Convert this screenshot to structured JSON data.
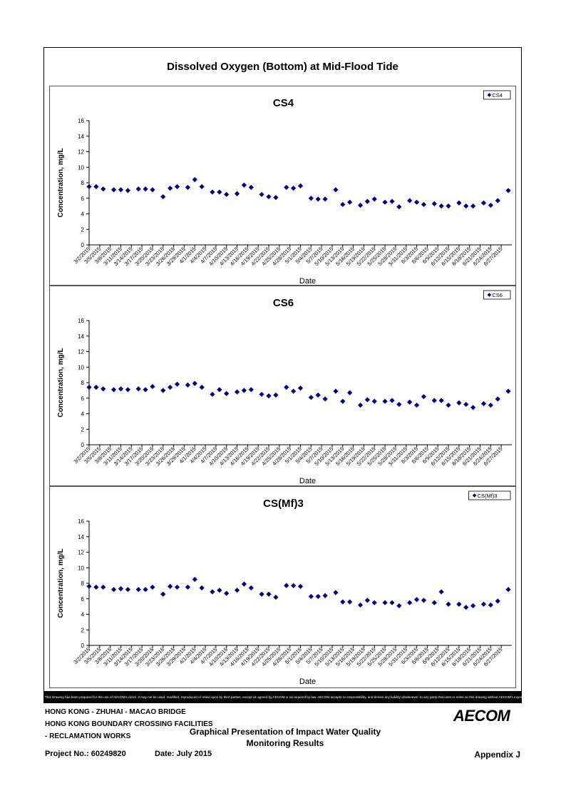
{
  "page": {
    "title": "Dissolved Oxygen (Bottom) at Mid-Flood Tide",
    "disclaimer": "This Drawing has been prepared for the use of AECOM's client. It may not be used, modified, reproduced or relied upon by third parties, except as agreed by AECOM or as required by law. AECOM accepts no responsibility, and denies any liability whatsoever, to any party that uses or relies on this drawing without AECOM's express written consent.",
    "footer": {
      "line1": "HONG KONG - ZHUHAI - MACAO BRIDGE",
      "line2": "HONG KONG BOUNDARY CROSSING FACILITIES",
      "line3": "- RECLAMATION WORKS",
      "center_line1": "Graphical Presentation of Impact Water Quality",
      "center_line2": "Monitoring Results",
      "logo": "AECOM",
      "project": "Project No.: 60249820",
      "date": "Date: July 2015",
      "appendix": "Appendix J"
    }
  },
  "colors": {
    "marker": "#000080",
    "axis": "#000000",
    "frame": "#000000"
  },
  "chart_data": [
    {
      "type": "scatter",
      "title": "CS4",
      "xlabel": "Date",
      "ylabel": "Concentration, mg/L",
      "ylim": [
        0,
        16
      ],
      "yticks": [
        0,
        2,
        4,
        6,
        8,
        10,
        12,
        14,
        16
      ],
      "xlim": [
        "3/2/2015",
        "6/30/2015"
      ],
      "xticks": [
        "3/2/2015",
        "3/5/2015",
        "3/8/2015",
        "3/11/2015",
        "3/14/2015",
        "3/17/2015",
        "3/20/2015",
        "3/23/2015",
        "3/26/2015",
        "3/29/2015",
        "4/1/2015",
        "4/4/2015",
        "4/7/2015",
        "4/10/2015",
        "4/13/2015",
        "4/16/2015",
        "4/19/2015",
        "4/22/2015",
        "4/25/2015",
        "4/28/2015",
        "5/1/2015",
        "5/4/2015",
        "5/7/2015",
        "5/10/2015",
        "5/13/2015",
        "5/16/2015",
        "5/19/2015",
        "5/22/2015",
        "5/25/2015",
        "5/28/2015",
        "5/31/2015",
        "6/3/2015",
        "6/6/2015",
        "6/9/2015",
        "6/12/2015",
        "6/15/2015",
        "6/18/2015",
        "6/21/2015",
        "6/24/2015",
        "6/27/2015"
      ],
      "legend": {
        "label": "CS4",
        "position": "top-right"
      },
      "grid": false,
      "series": [
        {
          "name": "CS4",
          "x": [
            "3/2/2015",
            "3/4/2015",
            "3/6/2015",
            "3/9/2015",
            "3/11/2015",
            "3/13/2015",
            "3/16/2015",
            "3/18/2015",
            "3/20/2015",
            "3/23/2015",
            "3/25/2015",
            "3/27/2015",
            "3/30/2015",
            "4/1/2015",
            "4/3/2015",
            "4/6/2015",
            "4/8/2015",
            "4/10/2015",
            "4/13/2015",
            "4/15/2015",
            "4/17/2015",
            "4/20/2015",
            "4/22/2015",
            "4/24/2015",
            "4/27/2015",
            "4/29/2015",
            "5/1/2015",
            "5/4/2015",
            "5/6/2015",
            "5/8/2015",
            "5/11/2015",
            "5/13/2015",
            "5/15/2015",
            "5/18/2015",
            "5/20/2015",
            "5/22/2015",
            "5/25/2015",
            "5/27/2015",
            "5/29/2015",
            "6/1/2015",
            "6/3/2015",
            "6/5/2015",
            "6/8/2015",
            "6/10/2015",
            "6/12/2015",
            "6/15/2015",
            "6/17/2015",
            "6/19/2015",
            "6/22/2015",
            "6/24/2015",
            "6/26/2015",
            "6/29/2015"
          ],
          "y": [
            7.5,
            7.5,
            7.2,
            7.1,
            7.1,
            7.0,
            7.2,
            7.2,
            7.1,
            6.2,
            7.3,
            7.5,
            7.4,
            8.4,
            7.5,
            6.8,
            6.8,
            6.5,
            6.6,
            7.7,
            7.4,
            6.5,
            6.2,
            6.1,
            7.4,
            7.3,
            7.6,
            6.0,
            5.9,
            5.9,
            7.1,
            5.2,
            5.5,
            5.1,
            5.6,
            5.9,
            5.5,
            5.6,
            4.9,
            5.7,
            5.5,
            5.2,
            5.3,
            5.0,
            5.0,
            5.4,
            5.0,
            5.0,
            5.4,
            5.1,
            5.7,
            7.0
          ]
        }
      ]
    },
    {
      "type": "scatter",
      "title": "CS6",
      "xlabel": "Date",
      "ylabel": "Concentration, mg/L",
      "ylim": [
        0,
        16
      ],
      "yticks": [
        0,
        2,
        4,
        6,
        8,
        10,
        12,
        14,
        16
      ],
      "xlim": [
        "3/2/2015",
        "6/30/2015"
      ],
      "xticks": [
        "3/2/2015",
        "3/5/2015",
        "3/8/2015",
        "3/11/2015",
        "3/14/2015",
        "3/17/2015",
        "3/20/2015",
        "3/23/2015",
        "3/26/2015",
        "3/29/2015",
        "4/1/2015",
        "4/4/2015",
        "4/7/2015",
        "4/10/2015",
        "4/13/2015",
        "4/16/2015",
        "4/19/2015",
        "4/22/2015",
        "4/25/2015",
        "4/28/2015",
        "5/1/2015",
        "5/4/2015",
        "5/7/2015",
        "5/10/2015",
        "5/13/2015",
        "5/16/2015",
        "5/19/2015",
        "5/22/2015",
        "5/25/2015",
        "5/28/2015",
        "5/31/2015",
        "6/3/2015",
        "6/6/2015",
        "6/9/2015",
        "6/12/2015",
        "6/15/2015",
        "6/18/2015",
        "6/21/2015",
        "6/24/2015",
        "6/27/2015"
      ],
      "legend": {
        "label": "CS6",
        "position": "top-right"
      },
      "grid": false,
      "series": [
        {
          "name": "CS6",
          "x": [
            "3/2/2015",
            "3/4/2015",
            "3/6/2015",
            "3/9/2015",
            "3/11/2015",
            "3/13/2015",
            "3/16/2015",
            "3/18/2015",
            "3/20/2015",
            "3/23/2015",
            "3/25/2015",
            "3/27/2015",
            "3/30/2015",
            "4/1/2015",
            "4/3/2015",
            "4/6/2015",
            "4/8/2015",
            "4/10/2015",
            "4/13/2015",
            "4/15/2015",
            "4/17/2015",
            "4/20/2015",
            "4/22/2015",
            "4/24/2015",
            "4/27/2015",
            "4/29/2015",
            "5/1/2015",
            "5/4/2015",
            "5/6/2015",
            "5/8/2015",
            "5/11/2015",
            "5/13/2015",
            "5/15/2015",
            "5/18/2015",
            "5/20/2015",
            "5/22/2015",
            "5/25/2015",
            "5/27/2015",
            "5/29/2015",
            "6/1/2015",
            "6/3/2015",
            "6/5/2015",
            "6/8/2015",
            "6/10/2015",
            "6/12/2015",
            "6/15/2015",
            "6/17/2015",
            "6/19/2015",
            "6/22/2015",
            "6/24/2015",
            "6/26/2015",
            "6/29/2015"
          ],
          "y": [
            7.4,
            7.4,
            7.2,
            7.1,
            7.2,
            7.1,
            7.2,
            7.1,
            7.5,
            7.0,
            7.4,
            7.8,
            7.7,
            7.9,
            7.4,
            6.5,
            7.1,
            6.6,
            6.8,
            7.0,
            7.1,
            6.5,
            6.3,
            6.4,
            7.4,
            6.9,
            7.3,
            6.1,
            6.4,
            5.9,
            6.9,
            5.6,
            6.7,
            5.1,
            5.8,
            5.6,
            5.6,
            5.7,
            5.2,
            5.5,
            5.1,
            6.2,
            5.7,
            5.7,
            5.1,
            5.4,
            5.2,
            4.8,
            5.3,
            5.1,
            5.9,
            6.9
          ]
        }
      ]
    },
    {
      "type": "scatter",
      "title": "CS(Mf)3",
      "xlabel": "Date",
      "ylabel": "Concentration, mg/L",
      "ylim": [
        0,
        16
      ],
      "yticks": [
        0,
        2,
        4,
        6,
        8,
        10,
        12,
        14,
        16
      ],
      "xlim": [
        "3/2/2015",
        "6/30/2015"
      ],
      "xticks": [
        "3/2/2015",
        "3/5/2015",
        "3/8/2015",
        "3/11/2015",
        "3/14/2015",
        "3/17/2015",
        "3/20/2015",
        "3/23/2015",
        "3/26/2015",
        "3/29/2015",
        "4/1/2015",
        "4/4/2015",
        "4/7/2015",
        "4/10/2015",
        "4/13/2015",
        "4/16/2015",
        "4/19/2015",
        "4/22/2015",
        "4/25/2015",
        "4/28/2015",
        "5/1/2015",
        "5/4/2015",
        "5/7/2015",
        "5/10/2015",
        "5/13/2015",
        "5/16/2015",
        "5/19/2015",
        "5/22/2015",
        "5/25/2015",
        "5/28/2015",
        "5/31/2015",
        "6/3/2015",
        "6/6/2015",
        "6/9/2015",
        "6/12/2015",
        "6/15/2015",
        "6/18/2015",
        "6/21/2015",
        "6/24/2015",
        "6/27/2015"
      ],
      "legend": {
        "label": "CS(Mf)3",
        "position": "top-right"
      },
      "grid": false,
      "series": [
        {
          "name": "CS(Mf)3",
          "x": [
            "3/2/2015",
            "3/4/2015",
            "3/6/2015",
            "3/9/2015",
            "3/11/2015",
            "3/13/2015",
            "3/16/2015",
            "3/18/2015",
            "3/20/2015",
            "3/23/2015",
            "3/25/2015",
            "3/27/2015",
            "3/30/2015",
            "4/1/2015",
            "4/3/2015",
            "4/6/2015",
            "4/8/2015",
            "4/10/2015",
            "4/13/2015",
            "4/15/2015",
            "4/17/2015",
            "4/20/2015",
            "4/22/2015",
            "4/24/2015",
            "4/27/2015",
            "4/29/2015",
            "5/1/2015",
            "5/4/2015",
            "5/6/2015",
            "5/8/2015",
            "5/11/2015",
            "5/13/2015",
            "5/15/2015",
            "5/18/2015",
            "5/20/2015",
            "5/22/2015",
            "5/25/2015",
            "5/27/2015",
            "5/29/2015",
            "6/1/2015",
            "6/3/2015",
            "6/5/2015",
            "6/8/2015",
            "6/10/2015",
            "6/12/2015",
            "6/15/2015",
            "6/17/2015",
            "6/19/2015",
            "6/22/2015",
            "6/24/2015",
            "6/26/2015",
            "6/29/2015"
          ],
          "y": [
            7.6,
            7.5,
            7.5,
            7.2,
            7.3,
            7.2,
            7.2,
            7.2,
            7.5,
            6.6,
            7.6,
            7.5,
            7.5,
            8.5,
            7.4,
            6.9,
            7.1,
            6.7,
            7.1,
            7.9,
            7.4,
            6.6,
            6.6,
            6.2,
            7.7,
            7.7,
            7.6,
            6.3,
            6.3,
            6.4,
            6.8,
            5.6,
            5.6,
            5.2,
            5.8,
            5.5,
            5.5,
            5.5,
            5.1,
            5.5,
            5.9,
            5.8,
            5.5,
            6.9,
            5.3,
            5.3,
            4.9,
            5.1,
            5.3,
            5.2,
            5.7,
            7.2
          ]
        }
      ]
    }
  ]
}
